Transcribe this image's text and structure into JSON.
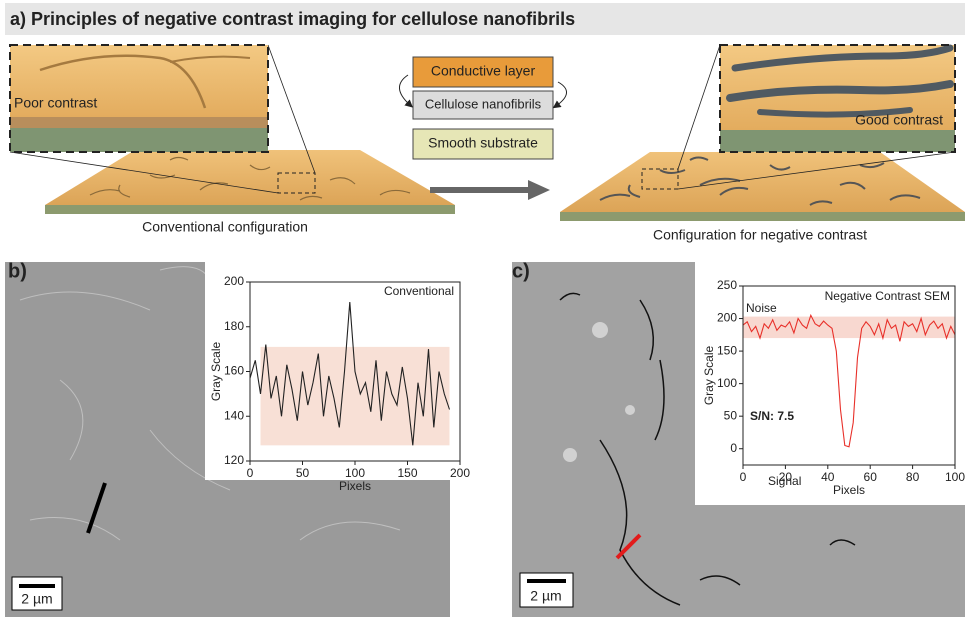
{
  "panel_a": {
    "title": "a) Principles of negative contrast imaging for cellulose nanofibrils",
    "layers": [
      "Conductive layer",
      "Cellulose nanofibrils",
      "Smooth substrate"
    ],
    "left_inset": "Poor contrast",
    "right_inset": "Good contrast",
    "left_caption": "Conventional configuration",
    "right_caption": "Configuration for negative contrast"
  },
  "chart_data": [
    {
      "type": "line",
      "panel_label": "b)",
      "title": "Conventional",
      "xlabel": "Pixels",
      "ylabel": "Gray Scale",
      "scale_bar": "2 µm",
      "x": [
        0,
        5,
        10,
        15,
        20,
        25,
        30,
        35,
        40,
        45,
        50,
        55,
        60,
        65,
        70,
        75,
        80,
        85,
        90,
        95,
        100,
        105,
        110,
        115,
        120,
        125,
        130,
        135,
        140,
        145,
        150,
        155,
        160,
        165,
        170,
        175,
        180,
        185,
        190
      ],
      "series": [
        {
          "color": "#222222",
          "values": [
            157,
            165,
            150,
            172,
            148,
            158,
            140,
            163,
            152,
            138,
            160,
            145,
            155,
            168,
            140,
            158,
            148,
            135,
            160,
            191,
            160,
            150,
            155,
            142,
            165,
            138,
            160,
            150,
            145,
            162,
            148,
            127,
            155,
            140,
            170,
            135,
            160,
            150,
            143
          ]
        }
      ],
      "band": {
        "xlim": [
          10,
          190
        ],
        "ylim": [
          127,
          171
        ],
        "color": "#f8e0d6"
      },
      "annotations": [],
      "xlim": [
        0,
        200
      ],
      "xticks": [
        0,
        50,
        100,
        150,
        200
      ],
      "ylim": [
        120,
        200
      ],
      "yticks": [
        120,
        140,
        160,
        180,
        200
      ]
    },
    {
      "type": "line",
      "panel_label": "c)",
      "title": "Negative Contrast SEM",
      "xlabel": "Pixels",
      "ylabel": "Gray Scale",
      "scale_bar": "2 µm",
      "x": [
        0,
        2,
        4,
        6,
        8,
        10,
        12,
        14,
        16,
        18,
        20,
        22,
        24,
        26,
        28,
        30,
        32,
        34,
        36,
        38,
        40,
        42,
        44,
        46,
        48,
        50,
        52,
        54,
        56,
        58,
        60,
        62,
        64,
        66,
        68,
        70,
        72,
        74,
        76,
        78,
        80,
        82,
        84,
        86,
        88,
        90,
        92,
        94,
        96,
        98,
        100
      ],
      "series": [
        {
          "color": "#e8302a",
          "values": [
            190,
            195,
            180,
            188,
            170,
            192,
            185,
            198,
            182,
            190,
            187,
            195,
            178,
            200,
            190,
            185,
            205,
            192,
            188,
            196,
            190,
            185,
            150,
            60,
            5,
            3,
            40,
            140,
            185,
            195,
            188,
            175,
            192,
            170,
            198,
            185,
            190,
            165,
            195,
            188,
            192,
            180,
            200,
            175,
            190,
            196,
            185,
            192,
            170,
            188,
            175
          ]
        }
      ],
      "band": {
        "xlim": [
          0,
          100
        ],
        "ylim": [
          170,
          203
        ],
        "color": "#f8d8d0"
      },
      "annotations": [
        "Noise",
        "Signal",
        "S/N: 7.5"
      ],
      "xlim": [
        0,
        100
      ],
      "xticks": [
        0,
        20,
        40,
        60,
        80,
        100
      ],
      "ylim": [
        -25,
        250
      ],
      "yticks": [
        0,
        50,
        100,
        150,
        200,
        250
      ]
    }
  ]
}
